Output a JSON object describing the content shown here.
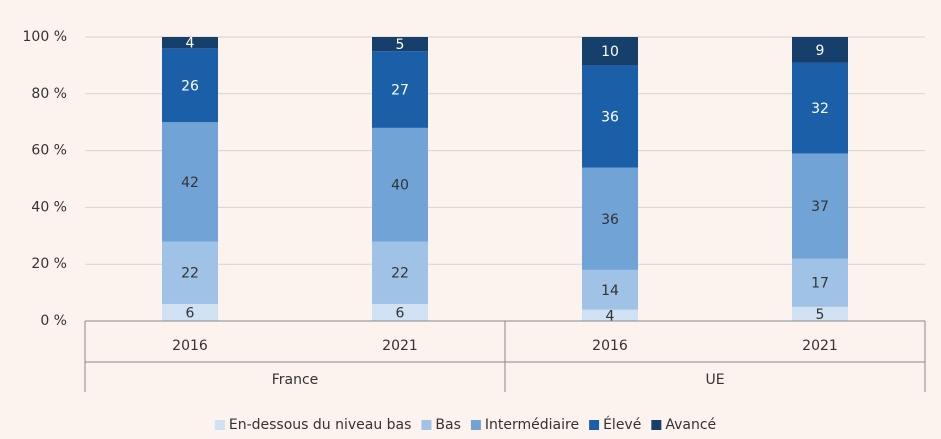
{
  "chart_data": {
    "type": "stacked_bar",
    "categories": [
      "2016",
      "2021",
      "2016",
      "2021"
    ],
    "groups": [
      "France",
      "UE"
    ],
    "series": [
      {
        "name": "En-dessous du niveau bas",
        "color": "#cfe1f2",
        "values": [
          6,
          6,
          4,
          5
        ]
      },
      {
        "name": "Bas",
        "color": "#9fc2e6",
        "values": [
          22,
          22,
          14,
          17
        ]
      },
      {
        "name": "Intermédiaire",
        "color": "#72a3d7",
        "values": [
          42,
          40,
          36,
          37
        ]
      },
      {
        "name": "Élevé",
        "color": "#1b5fa9",
        "values": [
          26,
          27,
          36,
          32
        ]
      },
      {
        "name": "Avancé",
        "color": "#173f6c",
        "values": [
          4,
          5,
          10,
          9
        ]
      }
    ],
    "ylim": [
      0,
      100
    ],
    "yticks": [
      {
        "value": 0,
        "label": "0 %"
      },
      {
        "value": 20,
        "label": "20 %"
      },
      {
        "value": 40,
        "label": "40 %"
      },
      {
        "value": 60,
        "label": "60 %"
      },
      {
        "value": 80,
        "label": "80 %"
      },
      {
        "value": 100,
        "label": "100 %"
      }
    ],
    "grid": true,
    "legend": "bottom"
  }
}
